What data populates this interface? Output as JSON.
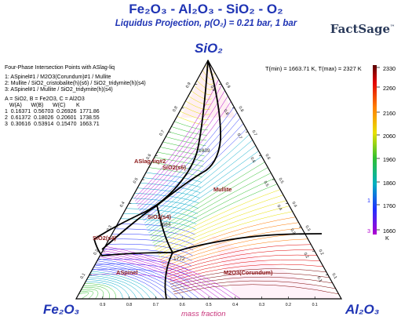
{
  "header": {
    "title": "Fe₂O₃ - Al₂O₃ - SiO₂ - O₂",
    "subtitle": "Liquidus Projection,  p(O₂) = 0.21 bar,  1 bar",
    "logo_text": "FactSage",
    "logo_mark": "™"
  },
  "vertices": {
    "top": "SiO₂",
    "left": "Fe₂O₃",
    "right": "Al₂O₃"
  },
  "axis_note": "mass fraction",
  "ticks": {
    "bottom": [
      "0.9",
      "0.8",
      "0.7",
      "0.6",
      "0.5",
      "0.4",
      "0.3",
      "0.2",
      "0.1"
    ],
    "left": [
      "0.1",
      "0.2",
      "0.3",
      "0.4",
      "0.5",
      "0.6",
      "0.7",
      "0.8",
      "0.9"
    ],
    "right": [
      "0.9",
      "0.8",
      "0.7",
      "0.6",
      "0.5",
      "0.4",
      "0.3",
      "0.2",
      "0.1"
    ]
  },
  "info": {
    "heading": "Four-Phase Intersection Points with ASlag-liq",
    "points": [
      "1:  ASpinel#1 / M2O3(Corundum)#1 / Mullite",
      "2:  Mullite / SiO2_cristobalite(h)(s6) / SiO2_tridymite(h)(s4)",
      "3:  ASpinel#1 / Mullite / SiO2_tridymite(h)(s4)"
    ],
    "components": "A = SiO2,  B = Fe2O3,  C = Al2O3",
    "columns": "   W(A)      W(B)      W(C)       K",
    "rows": [
      "1  0.16371  0.56703  0.26926  1771.86",
      "2  0.61372  0.18026  0.20601  1738.55",
      "3  0.30616  0.53914  0.15470  1663.71"
    ]
  },
  "temperature_range": "T(min) = 1663.71 K, T(max) = 2327 K",
  "colorbar": {
    "ticks": [
      "2330",
      "2260",
      "2160",
      "2060",
      "1960",
      "1860",
      "1760",
      "1660"
    ],
    "unit": "K",
    "marker_1": "1",
    "marker_3": "3",
    "colors": [
      "#7a0000",
      "#e00000",
      "#ff7a00",
      "#e8e000",
      "#30c030",
      "#00a8c8",
      "#2030ff",
      "#b000d0"
    ]
  },
  "fields": {
    "aslag_liq": "ASlag-liq#2",
    "sio2_s6": "SiO2(s6)",
    "mullite": "Mullite",
    "sio2_s4": "SiO2(s4)",
    "sio2_s4_lower": "SiO2(s4)",
    "aspinel": "ASpinel",
    "corundum": "M2O3(Corundum)"
  },
  "contour_labels": [
    "1939",
    "1664",
    "1772"
  ],
  "diagram_points": {
    "p1": {
      "A": 0.16371,
      "B": 0.56703,
      "C": 0.26926,
      "T": 1771.86
    },
    "p2": {
      "A": 0.61372,
      "B": 0.18026,
      "C": 0.20601,
      "T": 1738.55
    },
    "p3": {
      "A": 0.30616,
      "B": 0.53914,
      "C": 0.1547,
      "T": 1663.71
    }
  }
}
